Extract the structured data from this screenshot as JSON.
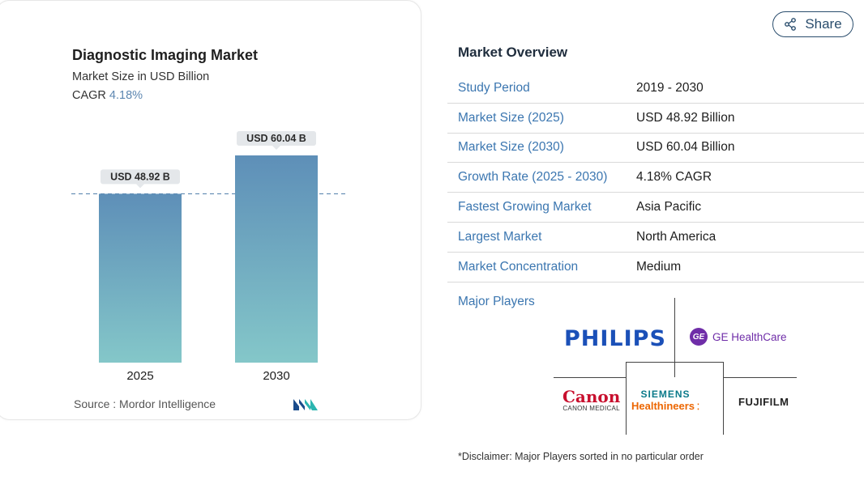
{
  "chart_card": {
    "title": "Diagnostic Imaging Market",
    "subtitle": "Market Size in USD Billion",
    "cagr_label": "CAGR",
    "cagr_value": "4.18%",
    "source": "Source :  Mordor Intelligence",
    "logo_icon": "mordor-intelligence-logo-icon"
  },
  "chart_data": {
    "type": "bar",
    "categories": [
      "2025",
      "2030"
    ],
    "values": [
      48.92,
      60.04
    ],
    "data_labels": [
      "USD 48.92 B",
      "USD 60.04 B"
    ],
    "title": "Diagnostic Imaging Market",
    "subtitle": "Market Size in USD Billion",
    "ylim": [
      0,
      60.04
    ],
    "reference_line": 48.92,
    "grid": false,
    "colors": {
      "bar_top": "#5e8fb8",
      "bar_bottom": "#84c7c9",
      "label_bg": "#e4e7ea",
      "reference_line": "#5d87b1"
    }
  },
  "share": {
    "label": "Share",
    "icon": "share-icon"
  },
  "overview": {
    "title": "Market Overview",
    "rows": [
      {
        "key": "Study Period",
        "value": "2019 - 2030"
      },
      {
        "key": "Market Size (2025)",
        "value": "USD 48.92 Billion"
      },
      {
        "key": "Market Size (2030)",
        "value": "USD 60.04 Billion"
      },
      {
        "key": "Growth Rate (2025 - 2030)",
        "value": "4.18% CAGR"
      },
      {
        "key": "Fastest Growing Market",
        "value": "Asia Pacific"
      },
      {
        "key": "Largest Market",
        "value": "North America"
      },
      {
        "key": "Market Concentration",
        "value": "Medium"
      }
    ],
    "major_players_label": "Major Players",
    "players": {
      "philips": "PHILIPS",
      "ge": "GE HealthCare",
      "ge_mark": "GE",
      "canon": "Canon",
      "canon_sub": "CANON MEDICAL",
      "siemens": "SIEMENS",
      "siemens_sub": "Healthineers",
      "fuji": "FUJIFILM"
    },
    "disclaimer": "*Disclaimer: Major Players sorted in no particular order"
  },
  "colors": {
    "accent_blue": "#3b76b0",
    "dark_navy": "#2a4d6d"
  }
}
